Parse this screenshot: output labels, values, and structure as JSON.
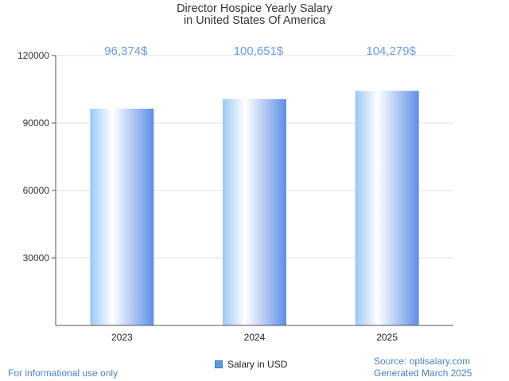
{
  "chart_data": {
    "type": "bar",
    "title_line1": "Director Hospice Yearly Salary",
    "title_line2": "in United States Of America",
    "categories": [
      "2023",
      "2024",
      "2025"
    ],
    "values": [
      96374,
      100651,
      104279
    ],
    "value_labels": [
      "96,374$",
      "100,651$",
      "104,279$"
    ],
    "ylim": [
      0,
      120000
    ],
    "yticks": [
      30000,
      60000,
      90000,
      120000
    ],
    "ytick_labels": [
      "30000",
      "60000",
      "90000",
      "120000"
    ],
    "grid": true,
    "legend": "bottom-center",
    "series": [
      {
        "name": "Salary in USD",
        "values": [
          96374,
          100651,
          104279
        ]
      }
    ]
  },
  "legend": {
    "label": "Salary in USD"
  },
  "footer": {
    "left": "For informational use only",
    "source": "Source: optisalary.com",
    "generated": "Generated March 2025"
  },
  "colors": {
    "label": "#6a9ce0",
    "bar_light": "#ffffff",
    "bar_dark": "#5b8fe8",
    "footer": "#4f81bd"
  }
}
